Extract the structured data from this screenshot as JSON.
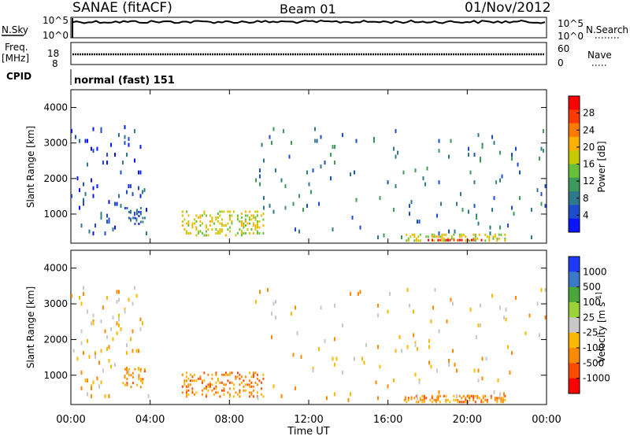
{
  "header": {
    "station": "SANAE (fitACF)",
    "beam": "Beam 01",
    "date": "01/Nov/2012"
  },
  "param_panels": {
    "nsky_label": "N.Sky",
    "nsearch_label": "N.Search",
    "nsky_ticks": [
      "10^5",
      "10^0"
    ],
    "nsearch_ticks": [
      "10^5",
      "10^0"
    ],
    "freq_label_line1": "Freq.",
    "freq_label_line2": "[MHz]",
    "freq_ticks": [
      "18",
      "8"
    ],
    "nave_label": "Nave",
    "nave_ticks": [
      "60",
      "0"
    ],
    "cpid_label": "CPID",
    "cpid_text": "normal (fast) 151"
  },
  "x_axis": {
    "label": "Time UT",
    "ticks": [
      "00:00",
      "04:00",
      "08:00",
      "12:00",
      "16:00",
      "20:00",
      "00:00"
    ]
  },
  "colors": {
    "power_scale": [
      "#0a14ff",
      "#1e4ccc",
      "#2e7a8c",
      "#3d9a5a",
      "#66c03a",
      "#c8c800",
      "#ffb000",
      "#ff7a00",
      "#ff3a00",
      "#ff0000"
    ],
    "velocity_scale": [
      "#ff0000",
      "#ff4a00",
      "#ff8a00",
      "#ffb800",
      "#c8c8c8",
      "#9ad23a",
      "#4aa83a",
      "#3a7ac8",
      "#1e3aff"
    ]
  },
  "chart_data": [
    {
      "type": "heatmap",
      "name": "Power",
      "ylabel": "Slant Range [km]",
      "xlabel": "",
      "ylim": [
        180,
        4500
      ],
      "xlim": [
        0,
        24
      ],
      "yticks": [
        "1000",
        "2000",
        "3000",
        "4000"
      ],
      "colorbar_label": "Power [dB]",
      "colorbar_ticks": [
        "4",
        "8",
        "12",
        "16",
        "20",
        "24",
        "28"
      ],
      "scatter_regions": [
        {
          "t0": 0.0,
          "t1": 4.0,
          "r0": 400,
          "r1": 3500,
          "density": 0.12,
          "level": 1
        },
        {
          "t0": 2.6,
          "t1": 3.8,
          "r0": 600,
          "r1": 1200,
          "density": 0.45,
          "level": 1
        },
        {
          "t0": 5.6,
          "t1": 9.8,
          "r0": 350,
          "r1": 1100,
          "density": 0.55,
          "level": 5
        },
        {
          "t0": 16.8,
          "t1": 22.0,
          "r0": 200,
          "r1": 450,
          "density": 0.7,
          "level": 5
        },
        {
          "t0": 18.0,
          "t1": 21.0,
          "r0": 200,
          "r1": 300,
          "density": 0.9,
          "level": 9
        },
        {
          "t0": 9.0,
          "t1": 24.0,
          "r0": 300,
          "r1": 3500,
          "density": 0.05,
          "level": 2
        }
      ]
    },
    {
      "type": "heatmap",
      "name": "Velocity",
      "ylabel": "Slant Range [km]",
      "xlabel": "Time UT",
      "ylim": [
        180,
        4500
      ],
      "xlim": [
        0,
        24
      ],
      "yticks": [
        "1000",
        "2000",
        "3000",
        "4000"
      ],
      "colorbar_label": "Velocity [m s^-1]",
      "colorbar_ticks": [
        "1000",
        "500",
        "100",
        "25",
        "-25",
        "-100",
        "-500",
        "-1000"
      ],
      "scatter_regions": [
        {
          "t0": 0.0,
          "t1": 4.0,
          "r0": 400,
          "r1": 3500,
          "density": 0.12,
          "level": 3
        },
        {
          "t0": 2.6,
          "t1": 3.8,
          "r0": 600,
          "r1": 1200,
          "density": 0.45,
          "level": 2
        },
        {
          "t0": 5.6,
          "t1": 9.8,
          "r0": 350,
          "r1": 1100,
          "density": 0.55,
          "level": 2
        },
        {
          "t0": 16.8,
          "t1": 22.0,
          "r0": 200,
          "r1": 450,
          "density": 0.8,
          "level": 2
        },
        {
          "t0": 9.0,
          "t1": 24.0,
          "r0": 300,
          "r1": 3500,
          "density": 0.05,
          "level": 3
        }
      ]
    }
  ]
}
